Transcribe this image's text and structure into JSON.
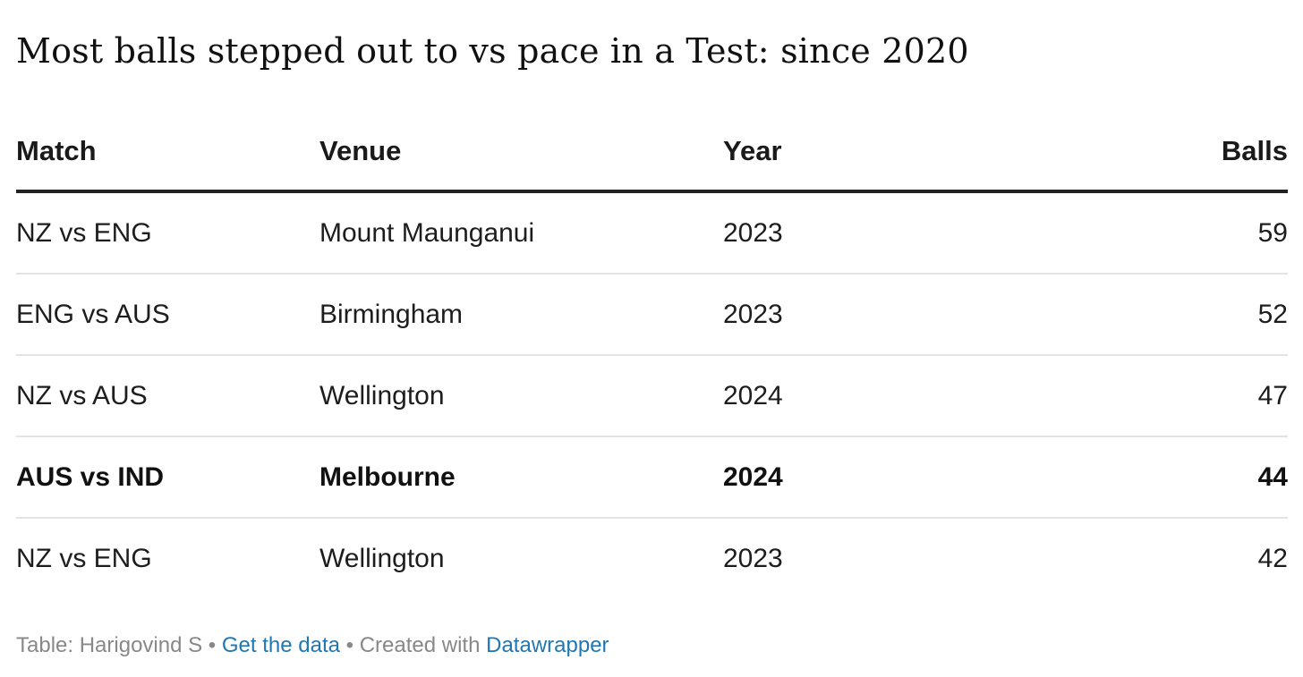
{
  "chart_data": {
    "type": "table",
    "title": "Most balls stepped out to vs pace in a Test: since 2020",
    "columns": [
      "Match",
      "Venue",
      "Year",
      "Balls"
    ],
    "rows": [
      {
        "match": "NZ vs ENG",
        "venue": "Mount Maunganui",
        "year": "2023",
        "balls": "59",
        "highlight": false
      },
      {
        "match": "ENG vs AUS",
        "venue": "Birmingham",
        "year": "2023",
        "balls": "52",
        "highlight": false
      },
      {
        "match": "NZ vs AUS",
        "venue": "Wellington",
        "year": "2024",
        "balls": "47",
        "highlight": false
      },
      {
        "match": "AUS vs IND",
        "venue": "Melbourne",
        "year": "2024",
        "balls": "44",
        "highlight": true
      },
      {
        "match": "NZ vs ENG",
        "venue": "Wellington",
        "year": "2023",
        "balls": "42",
        "highlight": false
      }
    ]
  },
  "footer": {
    "source": "Table: Harigovind S",
    "separator": "•",
    "get_data_label": "Get the data",
    "created_with": "Created with",
    "tool_label": "Datawrapper",
    "link_color": "#1f78b4"
  }
}
